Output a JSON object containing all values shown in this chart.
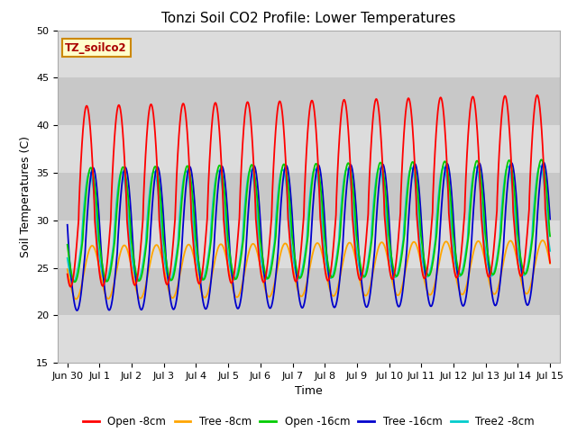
{
  "title": "Tonzi Soil CO2 Profile: Lower Temperatures",
  "xlabel": "Time",
  "ylabel": "Soil Temperatures (C)",
  "ylim": [
    15,
    50
  ],
  "tick_labels": [
    "Jun 30",
    "Jul 1",
    "Jul 2",
    "Jul 3",
    "Jul 4",
    "Jul 5",
    "Jul 6",
    "Jul 7",
    "Jul 8",
    "Jul 9",
    "Jul 10",
    "Jul 11",
    "Jul 12",
    "Jul 13",
    "Jul 14",
    "Jul 15"
  ],
  "tick_positions": [
    0,
    1,
    2,
    3,
    4,
    5,
    6,
    7,
    8,
    9,
    10,
    11,
    12,
    13,
    14,
    15
  ],
  "colors": {
    "Open -8cm": "#FF0000",
    "Tree -8cm": "#FFA500",
    "Open -16cm": "#00CC00",
    "Tree -16cm": "#0000CC",
    "Tree2 -8cm": "#00CCCC"
  },
  "legend_box_facecolor": "#FFFFCC",
  "legend_box_edgecolor": "#CC8800",
  "legend_text": "TZ_soilco2",
  "band_colors": [
    "#DCDCDC",
    "#C8C8C8"
  ],
  "title_fontsize": 11,
  "label_fontsize": 9,
  "tick_fontsize": 8
}
